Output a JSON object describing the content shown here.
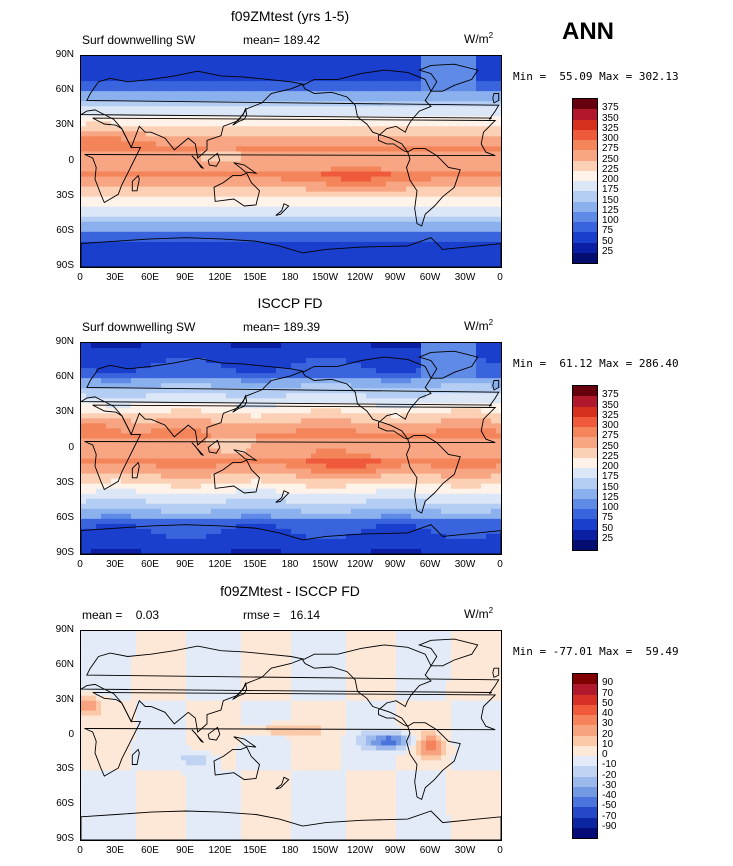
{
  "header": {
    "season": "ANN"
  },
  "panels": [
    {
      "title": "f09ZMtest (yrs 1-5)",
      "left_label": "Surf downwelling SW",
      "center_label": "mean= 189.42",
      "units": "W/m",
      "units_sup": "2",
      "minmax": "Min =  55.09 Max = 302.13",
      "colorbar_labels": [
        "375",
        "350",
        "325",
        "300",
        "275",
        "250",
        "225",
        "200",
        "175",
        "150",
        "125",
        "100",
        "75",
        "50",
        "25"
      ]
    },
    {
      "title": "ISCCP FD",
      "left_label": "Surf downwelling SW",
      "center_label": "mean= 189.39",
      "units": "W/m",
      "units_sup": "2",
      "minmax": "Min =  61.12 Max = 286.40",
      "colorbar_labels": [
        "375",
        "350",
        "325",
        "300",
        "275",
        "250",
        "225",
        "200",
        "175",
        "150",
        "125",
        "100",
        "75",
        "50",
        "25"
      ]
    },
    {
      "title": "f09ZMtest - ISCCP FD",
      "left_label": "mean =    0.03",
      "center_label": "rmse =   16.14",
      "units": "W/m",
      "units_sup": "2",
      "minmax": "Min = -77.01 Max =  59.49",
      "colorbar_labels": [
        "90",
        "70",
        "50",
        "40",
        "30",
        "20",
        "10",
        "0",
        "-10",
        "-20",
        "-30",
        "-40",
        "-50",
        "-70",
        "-90"
      ]
    }
  ],
  "axes": {
    "yticks": [
      "90N",
      "60N",
      "30N",
      "0",
      "30S",
      "60S",
      "90S"
    ],
    "xticks": [
      "0",
      "30E",
      "60E",
      "90E",
      "120E",
      "150E",
      "180",
      "150W",
      "120W",
      "90W",
      "60W",
      "30W",
      "0"
    ]
  },
  "colors": {
    "abs_scale": [
      "#67000d",
      "#b2182b",
      "#d6301f",
      "#ef5a3a",
      "#f4855b",
      "#f7a583",
      "#fbd0b5",
      "#fff2e8",
      "#dbe7f7",
      "#b4cdf2",
      "#8bb0ee",
      "#5f8be6",
      "#3a64dd",
      "#1a3fcd",
      "#0a1fa3",
      "#040d70"
    ],
    "diff_scale": [
      "#800000",
      "#b2182b",
      "#d73027",
      "#f05a3a",
      "#f4825b",
      "#f7a37f",
      "#fbc8a8",
      "#fde8d8",
      "#e2ebf7",
      "#c0d3f2",
      "#9bb9ec",
      "#7399e4",
      "#4a73dc",
      "#2448c8",
      "#0c25a0",
      "#050c78"
    ]
  }
}
